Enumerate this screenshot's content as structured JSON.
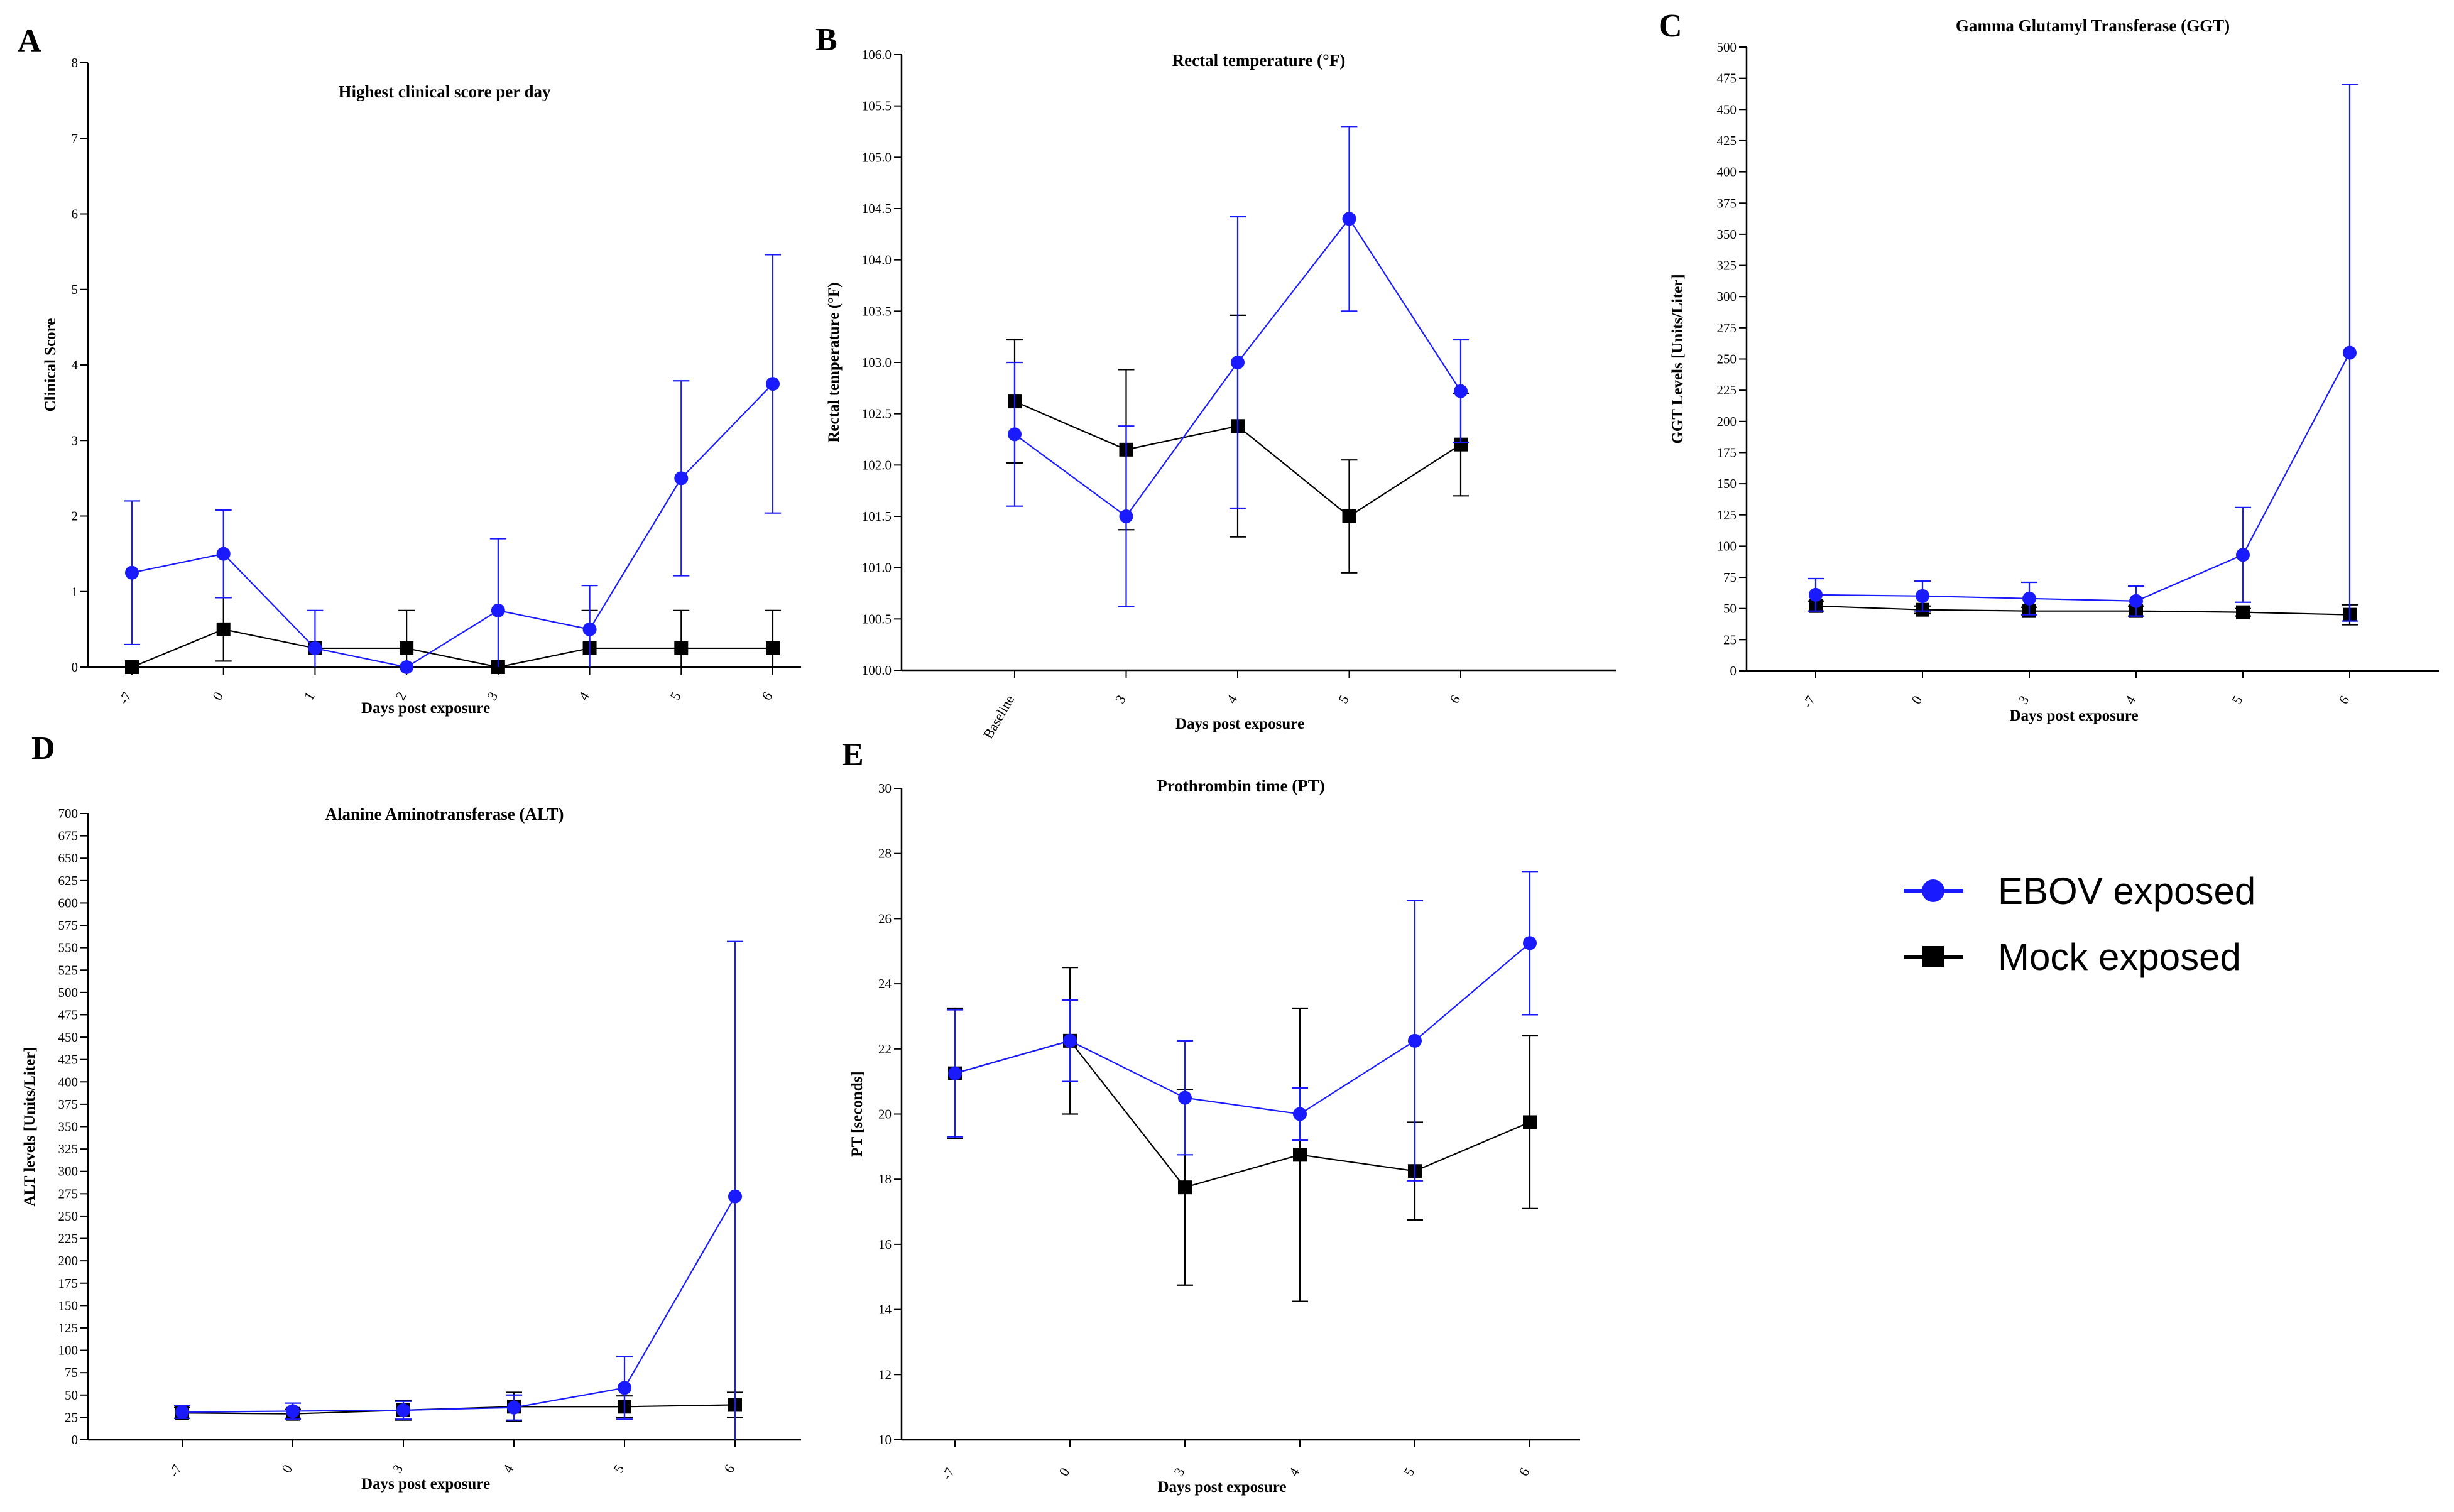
{
  "figure_title": "",
  "legend": {
    "placement": "right-middle",
    "items": [
      {
        "label": "EBOV exposed",
        "color": "#1a1aff",
        "marker": "circle"
      },
      {
        "label": "Mock exposed",
        "color": "#000000",
        "marker": "square"
      }
    ]
  },
  "chart_data": [
    {
      "panel": "A",
      "type": "line",
      "title": "Highest clinical score per day",
      "xlabel": "Days post exposure",
      "ylabel": "Clinical Score",
      "categories": [
        "-7",
        "0",
        "1",
        "2",
        "3",
        "4",
        "5",
        "6"
      ],
      "ylim": [
        0,
        8
      ],
      "yticks": [
        0,
        1,
        2,
        3,
        4,
        5,
        6,
        7,
        8
      ],
      "series": [
        {
          "name": "EBOV exposed",
          "color": "#1a1aff",
          "marker": "circle",
          "values": [
            1.25,
            1.5,
            0.25,
            0,
            0.75,
            0.5,
            2.5,
            3.75
          ],
          "errors": [
            0.95,
            0.58,
            0.5,
            0,
            0.95,
            0.58,
            1.29,
            1.71
          ]
        },
        {
          "name": "Mock exposed",
          "color": "#000000",
          "marker": "square",
          "values": [
            0,
            0.5,
            0.25,
            0.25,
            0,
            0.25,
            0.25,
            0.25
          ],
          "errors": [
            0,
            0.42,
            0,
            0.5,
            0,
            0.5,
            0.5,
            0.5
          ]
        }
      ]
    },
    {
      "panel": "B",
      "type": "line",
      "title": "Rectal temperature (°F)",
      "xlabel": "Days post exposure",
      "ylabel": "Rectal temperature (°F)",
      "categories": [
        "Baseline",
        "3",
        "4",
        "5",
        "6"
      ],
      "ylim": [
        100.0,
        106.0
      ],
      "yticks": [
        "100.0",
        "100.5",
        "101.0",
        "101.5",
        "102.0",
        "102.5",
        "103.0",
        "103.5",
        "104.0",
        "104.5",
        "105.0",
        "105.5",
        "106.0"
      ],
      "series": [
        {
          "name": "EBOV exposed",
          "color": "#1a1aff",
          "marker": "circle",
          "values": [
            102.3,
            101.5,
            103.0,
            104.4,
            102.72
          ],
          "errors": [
            0.7,
            0.88,
            1.42,
            0.9,
            0.5
          ]
        },
        {
          "name": "Mock exposed",
          "color": "#000000",
          "marker": "square",
          "values": [
            102.62,
            102.15,
            102.38,
            101.5,
            102.2
          ],
          "errors": [
            0.6,
            0.78,
            1.08,
            0.55,
            0.5
          ]
        }
      ]
    },
    {
      "panel": "C",
      "type": "line",
      "title": "Gamma Glutamyl Transferase (GGT)",
      "xlabel": "Days post exposure",
      "ylabel": "GGT Levels [Units/Liter]",
      "categories": [
        "-7",
        "0",
        "3",
        "4",
        "5",
        "6"
      ],
      "ylim": [
        0,
        500
      ],
      "yticks": [
        0,
        25,
        50,
        75,
        100,
        125,
        150,
        175,
        200,
        225,
        250,
        275,
        300,
        325,
        350,
        375,
        400,
        425,
        450,
        475,
        500
      ],
      "series": [
        {
          "name": "EBOV exposed",
          "color": "#1a1aff",
          "marker": "circle",
          "values": [
            61,
            60,
            58,
            56,
            93,
            255
          ],
          "errors": [
            13,
            12,
            13,
            12,
            38,
            215
          ]
        },
        {
          "name": "Mock exposed",
          "color": "#000000",
          "marker": "square",
          "values": [
            52,
            49,
            48,
            48,
            47,
            45
          ],
          "errors": [
            4,
            3,
            3,
            4,
            3,
            8
          ]
        }
      ]
    },
    {
      "panel": "D",
      "type": "line",
      "title": "Alanine Aminotransferase (ALT)",
      "xlabel": "Days post exposure",
      "ylabel": "ALT levels [Units/Liter]",
      "categories": [
        "-7",
        "0",
        "3",
        "4",
        "5",
        "6"
      ],
      "ylim": [
        0,
        700
      ],
      "yticks": [
        0,
        25,
        50,
        75,
        100,
        125,
        150,
        175,
        200,
        225,
        250,
        275,
        300,
        325,
        350,
        375,
        400,
        425,
        450,
        475,
        500,
        525,
        550,
        575,
        600,
        625,
        650,
        675,
        700
      ],
      "series": [
        {
          "name": "EBOV exposed",
          "color": "#1a1aff",
          "marker": "circle",
          "values": [
            31,
            32,
            33,
            36,
            58,
            272
          ],
          "errors": [
            7,
            9,
            10,
            14,
            35,
            285
          ]
        },
        {
          "name": "Mock exposed",
          "color": "#000000",
          "marker": "square",
          "values": [
            30,
            29,
            33,
            37,
            37,
            39
          ],
          "errors": [
            6,
            5,
            11,
            16,
            12,
            14
          ]
        }
      ]
    },
    {
      "panel": "E",
      "type": "line",
      "title": "Prothrombin time (PT)",
      "xlabel": "Days post exposure",
      "ylabel": "PT [seconds]",
      "categories": [
        "-7",
        "0",
        "3",
        "4",
        "5",
        "6"
      ],
      "ylim": [
        10,
        30
      ],
      "yticks": [
        10,
        12,
        14,
        16,
        18,
        20,
        22,
        24,
        26,
        28,
        30
      ],
      "series": [
        {
          "name": "EBOV exposed",
          "color": "#1a1aff",
          "marker": "circle",
          "values": [
            21.25,
            22.25,
            20.5,
            20.0,
            22.25,
            25.25
          ],
          "errors": [
            1.95,
            1.25,
            1.75,
            0.8,
            4.3,
            2.2
          ]
        },
        {
          "name": "Mock exposed",
          "color": "#000000",
          "marker": "square",
          "values": [
            21.25,
            22.25,
            17.75,
            18.75,
            18.25,
            19.75
          ],
          "errors": [
            2.0,
            2.25,
            3.0,
            4.5,
            1.5,
            2.65
          ]
        }
      ]
    }
  ]
}
